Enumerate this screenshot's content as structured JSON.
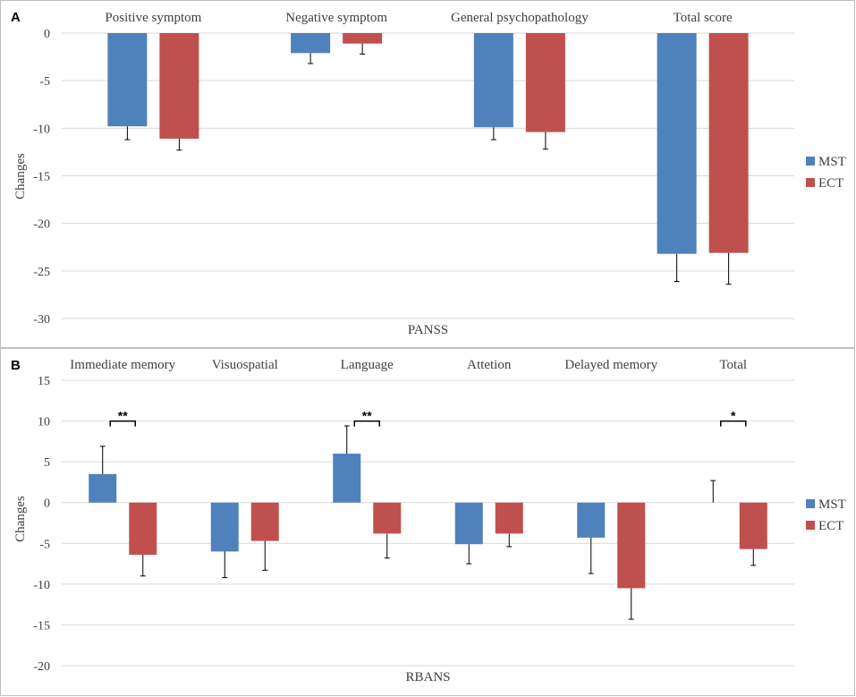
{
  "chart_data": [
    {
      "panel": "A",
      "type": "bar",
      "xlabel": "PANSS",
      "ylabel": "Changes",
      "ylim": [
        -30,
        0
      ],
      "yticks": [
        0,
        -5,
        -10,
        -15,
        -20,
        -25,
        -30
      ],
      "categories": [
        "Positive symptom",
        "Negative symptom",
        "General psychopathology",
        "Total score"
      ],
      "series": [
        {
          "name": "MST",
          "color": "#4f81bd",
          "values": [
            -9.8,
            -2.1,
            -9.9,
            -23.2
          ],
          "errors": [
            1.4,
            1.1,
            1.3,
            2.9
          ]
        },
        {
          "name": "ECT",
          "color": "#c0504d",
          "values": [
            -11.1,
            -1.1,
            -10.4,
            -23.1
          ],
          "errors": [
            1.2,
            1.1,
            1.8,
            3.3
          ]
        }
      ],
      "legend": "right",
      "significance": []
    },
    {
      "panel": "B",
      "type": "bar",
      "xlabel": "RBANS",
      "ylabel": "Changes",
      "ylim": [
        -20,
        15
      ],
      "yticks": [
        15,
        10,
        5,
        0,
        -5,
        -10,
        -15,
        -20
      ],
      "categories": [
        "Immediate memory",
        "Visuospatial",
        "Language",
        "Attetion",
        "Delayed memory",
        "Total"
      ],
      "series": [
        {
          "name": "MST",
          "color": "#4f81bd",
          "values": [
            3.5,
            -6.0,
            6.0,
            -5.1,
            -4.3,
            0.0
          ],
          "errors": [
            3.4,
            3.2,
            3.4,
            2.4,
            4.4,
            2.7
          ]
        },
        {
          "name": "ECT",
          "color": "#c0504d",
          "values": [
            -6.4,
            -4.7,
            -3.8,
            -3.8,
            -10.5,
            -5.7
          ],
          "errors": [
            2.6,
            3.6,
            3.0,
            1.6,
            3.8,
            2.0
          ]
        }
      ],
      "legend": "right",
      "significance": [
        {
          "category": 0,
          "label": "**"
        },
        {
          "category": 2,
          "label": "**"
        },
        {
          "category": 5,
          "label": "*"
        }
      ]
    }
  ]
}
